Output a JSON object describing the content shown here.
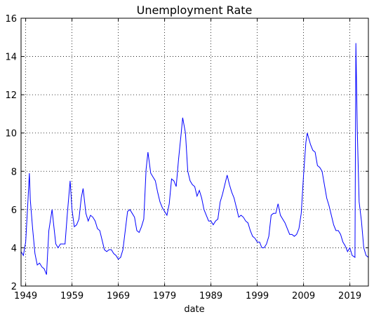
{
  "chart_data": {
    "type": "line",
    "title": "Unemployment Rate",
    "xlabel": "date",
    "xlim": [
      1948,
      2023
    ],
    "xticks": [
      1949,
      1959,
      1969,
      1979,
      1989,
      1999,
      2009,
      2019
    ],
    "ylim": [
      2,
      16
    ],
    "yticks": [
      2,
      4,
      6,
      8,
      10,
      12,
      14,
      16
    ],
    "grid": true,
    "series": [
      {
        "name": "Unemployment Rate",
        "color": "#0000ff",
        "x": [
          1948.0,
          1948.5,
          1949.0,
          1949.5,
          1949.8,
          1950.0,
          1950.5,
          1951.0,
          1951.5,
          1952.0,
          1952.5,
          1953.0,
          1953.5,
          1954.0,
          1954.7,
          1955.0,
          1955.5,
          1956.0,
          1956.5,
          1957.0,
          1957.5,
          1958.0,
          1958.6,
          1959.0,
          1959.5,
          1960.0,
          1960.5,
          1961.0,
          1961.4,
          1962.0,
          1962.5,
          1963.0,
          1963.5,
          1964.0,
          1964.5,
          1965.0,
          1965.5,
          1966.0,
          1966.5,
          1967.0,
          1967.5,
          1968.0,
          1968.5,
          1969.0,
          1969.5,
          1970.0,
          1970.5,
          1971.0,
          1971.5,
          1972.0,
          1972.5,
          1973.0,
          1973.5,
          1974.0,
          1974.5,
          1975.0,
          1975.4,
          1976.0,
          1976.5,
          1977.0,
          1977.5,
          1978.0,
          1978.5,
          1979.0,
          1979.5,
          1980.0,
          1980.5,
          1981.0,
          1981.5,
          1982.0,
          1982.5,
          1982.9,
          1983.5,
          1984.0,
          1984.5,
          1985.0,
          1985.5,
          1986.0,
          1986.5,
          1987.0,
          1987.5,
          1988.0,
          1988.5,
          1989.0,
          1989.5,
          1990.0,
          1990.5,
          1991.0,
          1991.5,
          1992.0,
          1992.5,
          1993.0,
          1993.5,
          1994.0,
          1994.5,
          1995.0,
          1995.5,
          1996.0,
          1996.5,
          1997.0,
          1997.5,
          1998.0,
          1998.5,
          1999.0,
          1999.5,
          2000.0,
          2000.5,
          2001.0,
          2001.5,
          2002.0,
          2002.5,
          2003.0,
          2003.5,
          2004.0,
          2004.5,
          2005.0,
          2005.5,
          2006.0,
          2006.5,
          2007.0,
          2007.5,
          2008.0,
          2008.5,
          2009.0,
          2009.5,
          2009.8,
          2010.5,
          2011.0,
          2011.5,
          2012.0,
          2012.5,
          2013.0,
          2013.5,
          2014.0,
          2014.5,
          2015.0,
          2015.5,
          2016.0,
          2016.5,
          2017.0,
          2017.5,
          2018.0,
          2018.5,
          2019.0,
          2019.5,
          2020.1,
          2020.3,
          2020.6,
          2021.0,
          2021.5,
          2022.0,
          2022.5,
          2023.0
        ],
        "values": [
          3.8,
          3.6,
          4.3,
          6.5,
          7.9,
          6.5,
          5.0,
          3.7,
          3.1,
          3.2,
          3.0,
          2.9,
          2.6,
          4.9,
          6.0,
          5.3,
          4.2,
          4.0,
          4.2,
          4.2,
          4.2,
          5.8,
          7.5,
          6.0,
          5.1,
          5.2,
          5.5,
          6.6,
          7.1,
          5.8,
          5.4,
          5.7,
          5.6,
          5.4,
          5.0,
          4.9,
          4.4,
          3.9,
          3.8,
          3.9,
          3.9,
          3.7,
          3.6,
          3.4,
          3.5,
          3.9,
          4.9,
          5.9,
          6.0,
          5.8,
          5.6,
          4.9,
          4.8,
          5.1,
          5.5,
          8.1,
          9.0,
          7.9,
          7.7,
          7.5,
          6.9,
          6.4,
          6.1,
          5.9,
          5.7,
          6.3,
          7.6,
          7.5,
          7.2,
          8.6,
          9.8,
          10.8,
          10.0,
          8.0,
          7.5,
          7.3,
          7.2,
          6.7,
          7.0,
          6.6,
          6.0,
          5.7,
          5.4,
          5.4,
          5.2,
          5.4,
          5.5,
          6.4,
          6.8,
          7.3,
          7.8,
          7.3,
          6.9,
          6.6,
          6.1,
          5.6,
          5.7,
          5.6,
          5.4,
          5.3,
          4.9,
          4.6,
          4.5,
          4.3,
          4.3,
          4.0,
          4.0,
          4.2,
          4.6,
          5.7,
          5.8,
          5.8,
          6.3,
          5.7,
          5.5,
          5.3,
          5.0,
          4.7,
          4.7,
          4.6,
          4.7,
          5.0,
          5.8,
          7.8,
          9.5,
          10.0,
          9.4,
          9.1,
          9.0,
          8.3,
          8.2,
          8.0,
          7.3,
          6.6,
          6.2,
          5.7,
          5.2,
          4.9,
          4.9,
          4.7,
          4.3,
          4.1,
          3.8,
          4.0,
          3.6,
          3.5,
          14.7,
          10.2,
          6.4,
          5.4,
          4.0,
          3.6,
          3.5
        ]
      }
    ]
  }
}
